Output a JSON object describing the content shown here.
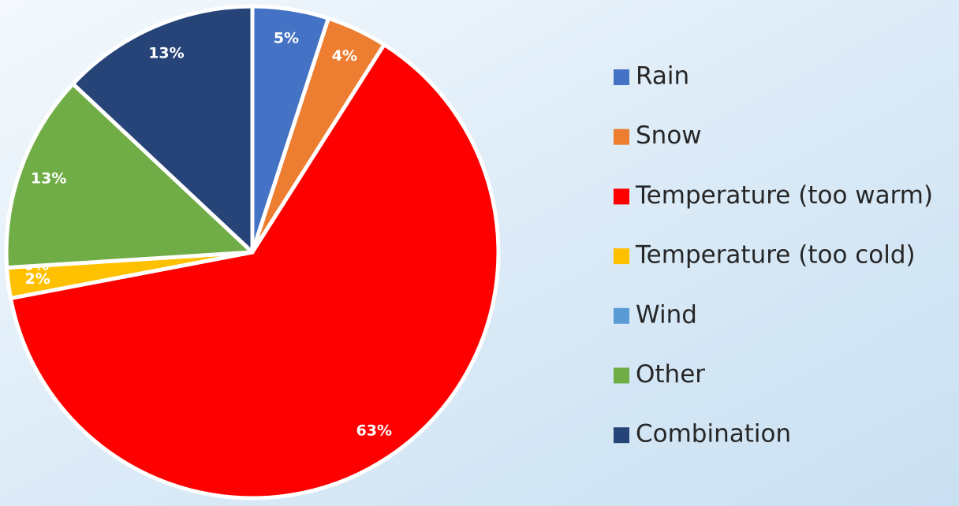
{
  "chart_data": {
    "type": "pie",
    "categories": [
      "Rain",
      "Snow",
      "Temperature (too warm)",
      "Temperature (too cold)",
      "Wind",
      "Other",
      "Combination"
    ],
    "values": [
      5,
      4,
      63,
      2,
      0,
      13,
      13
    ],
    "value_labels": [
      "5%",
      "4%",
      "63%",
      "2%",
      "0%",
      "13%",
      "13%"
    ],
    "colors": [
      "#4472c4",
      "#ed7d31",
      "#ff0000",
      "#ffc000",
      "#5b9bd5",
      "#70ad47",
      "#264478"
    ],
    "legend": "right"
  }
}
